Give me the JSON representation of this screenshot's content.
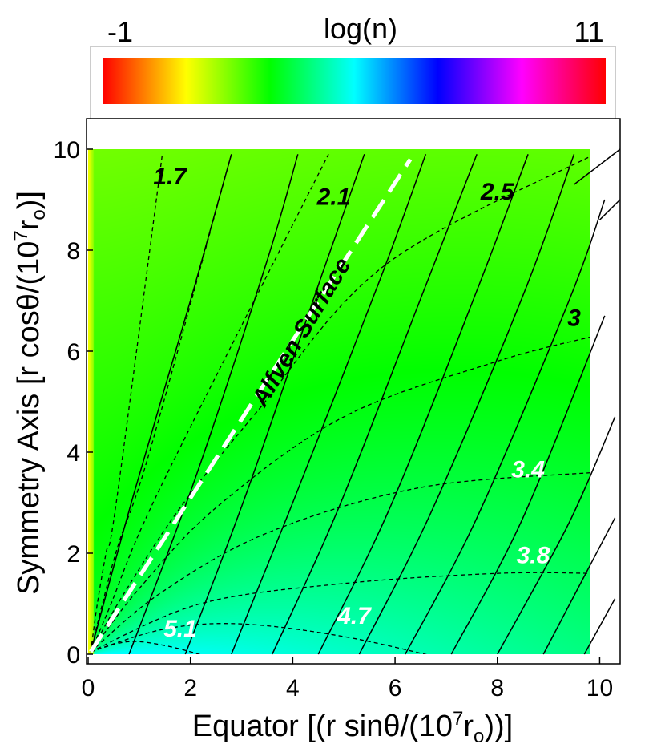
{
  "chart_data": {
    "type": "heatmap",
    "colorbar": {
      "title": "log(n)",
      "min_label": "-1",
      "max_label": "11",
      "range": [
        -1,
        11
      ],
      "colors": [
        "#ff0000",
        "#ffff00",
        "#00ff00",
        "#00ffff",
        "#0000ff",
        "#ff00ff",
        "#ff0000"
      ]
    },
    "xlabel_main": "Equator [(r sinθ/(10",
    "xlabel_exp": "7",
    "xlabel_tail": "r",
    "xlabel_sub": "o",
    "xlabel_close": "))]",
    "ylabel_main": "Symmetry Axis [r cosθ/(10",
    "ylabel_exp": "7",
    "ylabel_tail": "r",
    "ylabel_sub": "o",
    "ylabel_close": ")]",
    "xlim": [
      0,
      10.4
    ],
    "ylim": [
      -0.2,
      10.4
    ],
    "x_ticks": [
      "0",
      "2",
      "4",
      "6",
      "8",
      "10"
    ],
    "y_ticks": [
      "0",
      "2",
      "4",
      "6",
      "8",
      "10"
    ],
    "data_extent": [
      0,
      9.9,
      0,
      9.9
    ],
    "contour_labels": [
      {
        "text": "1.7",
        "x": 1.6,
        "y": 9.3,
        "color": "#000000"
      },
      {
        "text": "2.1",
        "x": 4.8,
        "y": 8.9,
        "color": "#000000"
      },
      {
        "text": "2.5",
        "x": 8.0,
        "y": 9.0,
        "color": "#000000"
      },
      {
        "text": "3",
        "x": 9.5,
        "y": 6.5,
        "color": "#000000"
      },
      {
        "text": "3.4",
        "x": 8.6,
        "y": 3.5,
        "color": "#ffffff"
      },
      {
        "text": "3.8",
        "x": 8.7,
        "y": 1.8,
        "color": "#ffffff"
      },
      {
        "text": "4.7",
        "x": 5.2,
        "y": 0.6,
        "color": "#ffffff"
      },
      {
        "text": "5.1",
        "x": 1.8,
        "y": 0.35,
        "color": "#ffffff"
      }
    ],
    "annotation": {
      "text": "Alfven Surface",
      "x": 4.3,
      "y": 6.3,
      "angle": 59
    },
    "alfven_surface": {
      "x": [
        0.05,
        6.3
      ],
      "y": [
        0.05,
        9.8
      ]
    },
    "density_contours": [
      {
        "x": [
          0.05,
          0.18,
          0.35,
          0.55,
          1.45
        ],
        "y": [
          0.05,
          1.0,
          2.0,
          3.0,
          9.9
        ]
      },
      {
        "x": [
          0.05,
          0.28,
          0.6,
          1.2,
          2.8
        ],
        "y": [
          0.05,
          1.0,
          2.2,
          4.0,
          9.9
        ]
      },
      {
        "x": [
          0.05,
          0.45,
          1.0,
          2.0,
          4.7
        ],
        "y": [
          0.05,
          1.0,
          2.4,
          4.5,
          9.9
        ]
      },
      {
        "x": [
          0.05,
          0.7,
          1.8,
          3.3,
          5.8,
          9.9
        ],
        "y": [
          0.05,
          1.2,
          2.9,
          4.8,
          7.7,
          9.9
        ]
      },
      {
        "x": [
          0.05,
          1.0,
          2.5,
          5.0,
          8.0,
          9.9
        ],
        "y": [
          0.05,
          1.3,
          2.9,
          4.7,
          5.8,
          6.3
        ]
      },
      {
        "x": [
          0.05,
          1.4,
          3.5,
          6.5,
          9.9
        ],
        "y": [
          0.05,
          1.2,
          2.4,
          3.3,
          3.6
        ]
      },
      {
        "x": [
          0.05,
          2.2,
          5.0,
          8.0,
          9.9
        ],
        "y": [
          0.05,
          1.0,
          1.4,
          1.6,
          1.6
        ]
      },
      {
        "x": [
          0.05,
          1.5,
          3.0,
          5.0,
          7.0
        ],
        "y": [
          0.05,
          0.5,
          0.6,
          0.35,
          -0.1
        ]
      },
      {
        "x": [
          0.05,
          0.8,
          1.6,
          2.5
        ],
        "y": [
          0.05,
          0.25,
          0.15,
          -0.1
        ]
      }
    ],
    "field_lines": [
      {
        "x": [
          0.05,
          0.9,
          2.0,
          2.8
        ],
        "y": [
          0.05,
          3.2,
          7.0,
          9.9
        ]
      },
      {
        "x": [
          0.8,
          2.1,
          3.5,
          4.1
        ],
        "y": [
          0.0,
          3.5,
          7.8,
          9.9
        ]
      },
      {
        "x": [
          1.9,
          3.1,
          4.6,
          5.4
        ],
        "y": [
          0.0,
          3.2,
          7.6,
          9.9
        ]
      },
      {
        "x": [
          2.8,
          4.0,
          5.7,
          6.6
        ],
        "y": [
          0.0,
          3.0,
          7.4,
          9.9
        ]
      },
      {
        "x": [
          3.6,
          4.9,
          6.6,
          7.6
        ],
        "y": [
          0.0,
          2.9,
          7.3,
          9.9
        ]
      },
      {
        "x": [
          4.5,
          5.9,
          7.6,
          8.6
        ],
        "y": [
          0.0,
          2.9,
          7.2,
          9.9
        ]
      },
      {
        "x": [
          5.3,
          6.7,
          8.5,
          9.5
        ],
        "y": [
          0.0,
          2.8,
          7.1,
          9.9
        ]
      },
      {
        "x": [
          6.2,
          7.6,
          9.4,
          10.1
        ],
        "y": [
          0.0,
          2.7,
          7.0,
          9.0
        ]
      },
      {
        "x": [
          7.1,
          8.5,
          10.1
        ],
        "y": [
          0.0,
          2.7,
          6.7
        ]
      },
      {
        "x": [
          8.0,
          9.4,
          10.3
        ],
        "y": [
          0.0,
          2.6,
          4.7
        ]
      },
      {
        "x": [
          8.9,
          10.3
        ],
        "y": [
          0.0,
          2.7
        ]
      },
      {
        "x": [
          9.7,
          10.3
        ],
        "y": [
          0.0,
          1.1
        ]
      },
      {
        "x": [
          9.5,
          10.4
        ],
        "y": [
          9.3,
          10.0
        ]
      },
      {
        "x": [
          10.0,
          10.4
        ],
        "y": [
          8.6,
          9.0
        ]
      }
    ]
  }
}
